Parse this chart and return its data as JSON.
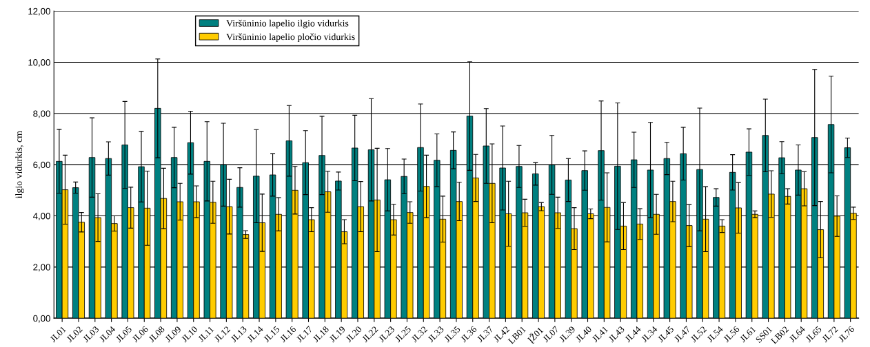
{
  "chart_data": {
    "type": "bar",
    "ylabel": "ilgio vidurkis, cm",
    "categories": [
      "JL01",
      "JL02",
      "JL03",
      "JL04",
      "JL05",
      "JL06",
      "JL08",
      "JL09",
      "JL10",
      "JL11",
      "JL12",
      "JL13",
      "JL14",
      "JL15",
      "JL16",
      "JL17",
      "JL18",
      "JL19",
      "JL20",
      "JL22",
      "JL23",
      "JL25",
      "JL32",
      "JL33",
      "JL35",
      "JL36",
      "JL37",
      "JL42",
      "LB01",
      "ĮŽ01",
      "JL07",
      "JL39",
      "JL40",
      "JL41",
      "JL43",
      "JL44",
      "JL34",
      "JL45",
      "JL47",
      "JL52",
      "JL54",
      "JL56",
      "JL61",
      "SS01",
      "LB02",
      "JL64",
      "JL65",
      "JL72",
      "JL76"
    ],
    "series": [
      {
        "name": "Viršūninio lapelio ilgio vidurkis",
        "color": "#008080",
        "values": [
          6.13,
          5.1,
          6.28,
          6.24,
          6.77,
          5.92,
          8.2,
          6.28,
          6.86,
          6.13,
          6.0,
          5.11,
          5.55,
          5.6,
          6.93,
          6.08,
          6.36,
          5.36,
          6.65,
          6.58,
          5.41,
          5.54,
          6.67,
          6.17,
          6.56,
          7.9,
          6.73,
          5.87,
          5.93,
          5.64,
          5.99,
          5.4,
          5.77,
          6.55,
          5.94,
          6.19,
          5.79,
          6.24,
          6.43,
          5.81,
          4.72,
          5.7,
          6.49,
          7.14,
          6.27,
          5.79,
          7.06,
          7.57,
          6.66
        ],
        "errors": [
          1.25,
          0.22,
          1.55,
          0.65,
          1.7,
          1.38,
          1.93,
          1.18,
          1.23,
          1.55,
          1.62,
          0.77,
          1.82,
          0.83,
          1.38,
          1.25,
          1.53,
          0.35,
          1.28,
          2.0,
          1.22,
          0.68,
          1.7,
          1.03,
          0.72,
          2.12,
          1.46,
          1.64,
          0.82,
          0.44,
          1.15,
          0.84,
          0.77,
          1.94,
          2.47,
          1.08,
          1.86,
          0.63,
          1.03,
          2.4,
          0.34,
          0.69,
          0.91,
          1.42,
          0.63,
          0.98,
          2.66,
          1.89,
          0.38
        ]
      },
      {
        "name": "Viršūninio lapelio pločio vidurkis",
        "color": "#ffcc00",
        "values": [
          5.02,
          3.75,
          3.93,
          3.7,
          4.32,
          4.3,
          4.68,
          4.55,
          4.55,
          4.53,
          4.36,
          3.27,
          3.73,
          4.06,
          5.0,
          3.85,
          4.94,
          3.38,
          4.36,
          4.62,
          3.85,
          4.13,
          5.15,
          3.87,
          4.56,
          5.48,
          5.27,
          4.08,
          4.12,
          4.36,
          4.12,
          3.5,
          4.08,
          4.33,
          3.6,
          3.68,
          4.06,
          4.56,
          3.62,
          3.87,
          3.6,
          4.31,
          4.06,
          4.85,
          4.76,
          5.06,
          3.46,
          3.99,
          4.1
        ],
        "errors": [
          1.35,
          0.38,
          0.93,
          0.3,
          0.8,
          1.45,
          1.18,
          0.72,
          0.62,
          0.82,
          1.07,
          0.15,
          1.12,
          0.65,
          0.93,
          0.47,
          0.8,
          0.47,
          0.98,
          2.02,
          0.6,
          0.42,
          1.22,
          0.9,
          0.75,
          0.92,
          1.54,
          1.27,
          0.53,
          0.16,
          0.61,
          0.82,
          0.19,
          1.35,
          0.92,
          0.6,
          0.78,
          0.79,
          0.82,
          1.27,
          0.25,
          0.99,
          0.13,
          0.91,
          0.3,
          0.67,
          1.1,
          0.79,
          0.24
        ]
      }
    ],
    "ylim": [
      0,
      12
    ],
    "yticks": [
      {
        "value": 0,
        "label": "0,00"
      },
      {
        "value": 2,
        "label": "2,00"
      },
      {
        "value": 4,
        "label": "4,00"
      },
      {
        "value": 6,
        "label": "6,00"
      },
      {
        "value": 8,
        "label": "8,00"
      },
      {
        "value": 10,
        "label": "10,00"
      },
      {
        "value": 12,
        "label": "12,00"
      }
    ],
    "grid": "y",
    "legend": "top left"
  }
}
